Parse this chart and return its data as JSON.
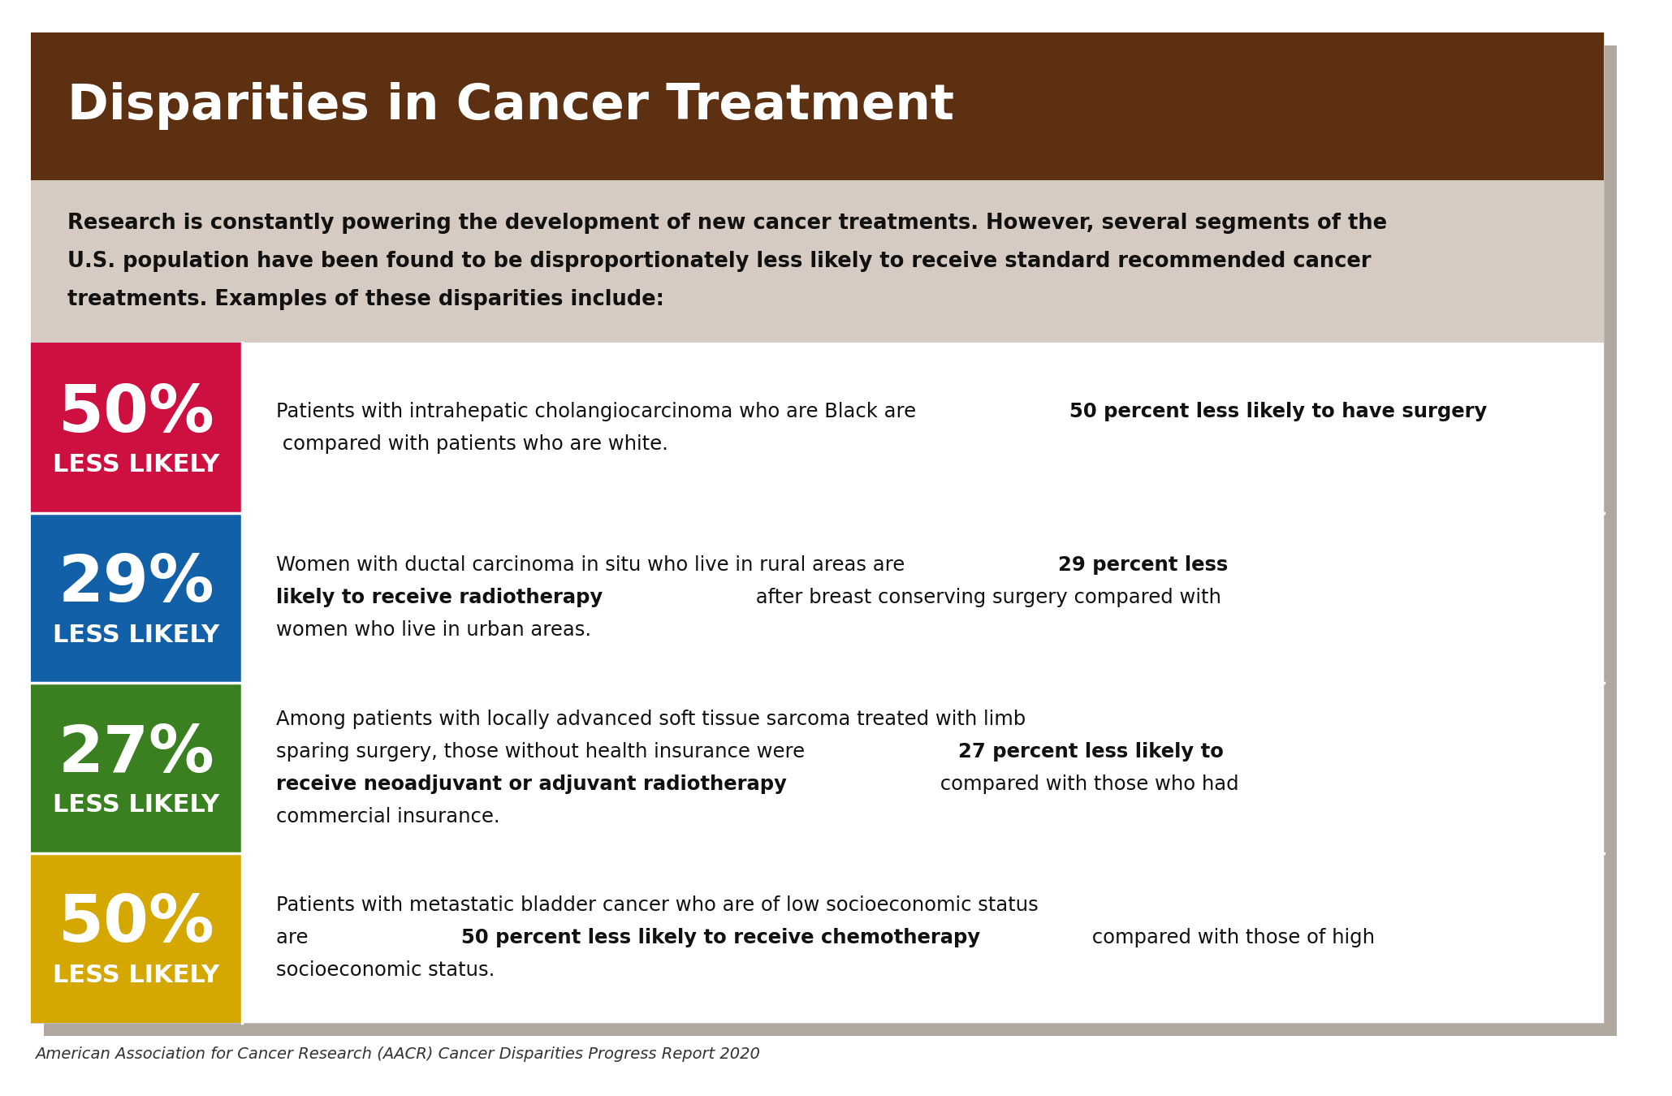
{
  "title": "Disparities in Cancer Treatment",
  "title_bg": "#5C3010",
  "title_color": "#FFFFFF",
  "intro_bg": "#D5CBC2",
  "intro_lines": [
    "Research is constantly powering the development of new cancer treatments. However, several segments of the",
    "U.S. population have been found to be disproportionately less likely to receive standard recommended cancer",
    "treatments. Examples of these disparities include:"
  ],
  "footer": "American Association for Cancer Research (AACR) Cancer Disparities Progress Report 2020",
  "rows": [
    {
      "pct": "50%",
      "label": "LESS LIKELY",
      "color": "#CE1040",
      "display_lines": [
        [
          [
            "Patients with intrahepatic cholangiocarcinoma who are Black are ",
            false
          ],
          [
            "50 percent less likely to have surgery",
            true
          ]
        ],
        [
          [
            " compared with patients who are white.",
            false
          ]
        ]
      ]
    },
    {
      "pct": "29%",
      "label": "LESS LIKELY",
      "color": "#1260A8",
      "display_lines": [
        [
          [
            "Women with ductal carcinoma in situ who live in rural areas are ",
            false
          ],
          [
            "29 percent less",
            true
          ]
        ],
        [
          [
            "likely to receive radiotherapy",
            true
          ],
          [
            " after breast conserving surgery compared with",
            false
          ]
        ],
        [
          [
            "women who live in urban areas.",
            false
          ]
        ]
      ]
    },
    {
      "pct": "27%",
      "label": "LESS LIKELY",
      "color": "#3A8020",
      "display_lines": [
        [
          [
            "Among patients with locally advanced soft tissue sarcoma treated with limb",
            false
          ]
        ],
        [
          [
            "sparing surgery, those without health insurance were ",
            false
          ],
          [
            "27 percent less likely to",
            true
          ]
        ],
        [
          [
            "receive neoadjuvant or adjuvant radiotherapy",
            true
          ],
          [
            " compared with those who had",
            false
          ]
        ],
        [
          [
            "commercial insurance.",
            false
          ]
        ]
      ]
    },
    {
      "pct": "50%",
      "label": "LESS LIKELY",
      "color": "#D4A800",
      "display_lines": [
        [
          [
            "Patients with metastatic bladder cancer who are of low socioeconomic status",
            false
          ]
        ],
        [
          [
            "are ",
            false
          ],
          [
            "50 percent less likely to receive chemotherapy",
            true
          ],
          [
            " compared with those of high",
            false
          ]
        ],
        [
          [
            "socioeconomic status.",
            false
          ]
        ]
      ]
    }
  ],
  "outer_bg": "#FFFFFF",
  "card_bg": "#EDE8E3",
  "shadow_color": "#B0A89E",
  "row_bg": "#FFFFFF"
}
